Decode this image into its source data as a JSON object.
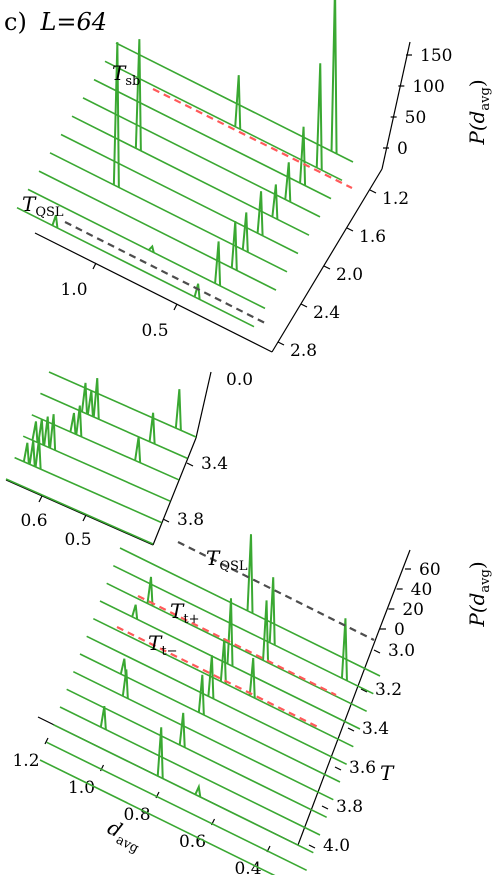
{
  "title": "c) L=64",
  "title_prefix": "c)",
  "title_L": "L=64",
  "colors": {
    "trace": "#3aa832",
    "tsb_line": "#ff5a5a",
    "tqsl_line": "#4d4d4d"
  },
  "chart_data": [
    {
      "type": "line",
      "panel": "top",
      "z_label": "P(d",
      "z_label_sub": "avg",
      "z_label_close": ")",
      "z_ticks": [
        "0",
        "50",
        "100",
        "150"
      ],
      "z_range": [
        0,
        175
      ],
      "t_ticks": [
        "1.2",
        "1.6",
        "2.0",
        "2.4",
        "2.8"
      ],
      "t_range": [
        1.0,
        3.0
      ],
      "d_ticks": [
        "1.0",
        "0.5",
        "0.0"
      ],
      "d_range": [
        1.25,
        0.0
      ],
      "annotations": [
        {
          "text": "T",
          "sub": "sb",
          "T": 1.3,
          "style": "red-dashed"
        },
        {
          "text": "T",
          "sub": "QSL",
          "T": 2.6,
          "style": "gray-dashed"
        }
      ],
      "series": [
        {
          "T": 1.0,
          "peaks": [
            [
              0.1,
              175
            ]
          ]
        },
        {
          "T": 1.2,
          "peaks": [
            [
              0.12,
              110
            ],
            [
              0.55,
              55
            ]
          ]
        },
        {
          "T": 1.4,
          "peaks": [
            [
              0.15,
              60
            ]
          ]
        },
        {
          "T": 1.6,
          "peaks": [
            [
              0.17,
              40
            ]
          ]
        },
        {
          "T": 1.8,
          "peaks": [
            [
              0.18,
              35
            ],
            [
              0.9,
              115
            ]
          ]
        },
        {
          "T": 2.0,
          "peaks": [
            [
              0.2,
              45
            ]
          ]
        },
        {
          "T": 2.2,
          "peaks": [
            [
              0.22,
              40
            ],
            [
              0.9,
              150
            ]
          ]
        },
        {
          "T": 2.4,
          "peaks": [
            [
              0.22,
              50
            ]
          ]
        },
        {
          "T": 2.6,
          "peaks": [
            [
              0.25,
              45
            ],
            [
              0.6,
              5
            ]
          ]
        },
        {
          "T": 2.8,
          "peaks": [
            [
              0.3,
              15
            ],
            [
              1.05,
              12
            ]
          ]
        }
      ]
    },
    {
      "type": "line",
      "panel": "middle",
      "t_ticks": [
        "3.4",
        "3.8"
      ],
      "t_range": [
        3.0,
        4.0
      ],
      "d_ticks": [
        "0.6",
        "0.5"
      ],
      "d_range": [
        0.68,
        0.43
      ],
      "series": [
        {
          "T": 3.0,
          "peaks": [
            [
              0.46,
              40
            ]
          ]
        },
        {
          "T": 3.2,
          "peaks": [
            [
              0.49,
              30
            ],
            [
              0.585,
              40
            ],
            [
              0.595,
              25
            ],
            [
              0.605,
              30
            ]
          ]
        },
        {
          "T": 3.4,
          "peaks": [
            [
              0.5,
              25
            ],
            [
              0.6,
              30
            ],
            [
              0.61,
              20
            ]
          ]
        },
        {
          "T": 3.6,
          "peaks": [
            [
              0.63,
              35
            ],
            [
              0.64,
              30
            ],
            [
              0.65,
              25
            ],
            [
              0.66,
              20
            ]
          ]
        },
        {
          "T": 3.8,
          "peaks": [
            [
              0.64,
              30
            ],
            [
              0.65,
              25
            ],
            [
              0.66,
              20
            ]
          ]
        },
        {
          "T": 4.0,
          "peaks": []
        }
      ]
    },
    {
      "type": "line",
      "panel": "bottom",
      "x_label": "d",
      "x_label_sub": "avg",
      "y_label": "T",
      "z_label": "P(d",
      "z_label_sub": "avg",
      "z_label_close": ")",
      "z_ticks": [
        "0",
        "20",
        "40",
        "60"
      ],
      "z_range": [
        0,
        72
      ],
      "t_ticks": [
        "3.0",
        "3.2",
        "3.4",
        "3.6",
        "3.8",
        "4.0"
      ],
      "t_range": [
        2.8,
        4.0
      ],
      "d_ticks": [
        "1.2",
        "1.0",
        "0.8",
        "0.6",
        "0.4"
      ],
      "d_range": [
        1.3,
        0.4
      ],
      "annotations": [
        {
          "text": "T",
          "sub": "QSL",
          "T": 2.85,
          "style": "gray-dashed"
        },
        {
          "text": "T",
          "sub": "t+",
          "T": 3.25,
          "style": "red-dashed"
        },
        {
          "text": "T",
          "sub": "t−",
          "T": 3.4,
          "style": "red-dashed"
        }
      ],
      "series": [
        {
          "T": 2.8,
          "peaks": [
            [
              0.85,
              70
            ]
          ]
        },
        {
          "T": 2.9,
          "peaks": [
            [
              0.75,
              60
            ],
            [
              0.5,
              55
            ]
          ]
        },
        {
          "T": 3.0,
          "peaks": [
            [
              0.75,
              55
            ],
            [
              1.15,
              25
            ]
          ]
        },
        {
          "T": 3.1,
          "peaks": [
            [
              0.85,
              60
            ],
            [
              1.18,
              12
            ]
          ]
        },
        {
          "T": 3.2,
          "peaks": [
            [
              0.85,
              40
            ],
            [
              0.75,
              35
            ]
          ]
        },
        {
          "T": 3.3,
          "peaks": [
            [
              0.87,
              38
            ]
          ]
        },
        {
          "T": 3.4,
          "peaks": [
            [
              1.15,
              15
            ],
            [
              0.88,
              35
            ]
          ]
        },
        {
          "T": 3.5,
          "peaks": [
            [
              1.12,
              25
            ]
          ]
        },
        {
          "T": 3.6,
          "peaks": [
            [
              0.9,
              30
            ]
          ]
        },
        {
          "T": 3.7,
          "peaks": [
            [
              1.15,
              20
            ]
          ]
        },
        {
          "T": 3.8,
          "peaks": [
            [
              0.93,
              45
            ],
            [
              0.8,
              8
            ]
          ]
        },
        {
          "T": 3.9,
          "peaks": []
        },
        {
          "T": 4.0,
          "peaks": []
        }
      ]
    }
  ]
}
